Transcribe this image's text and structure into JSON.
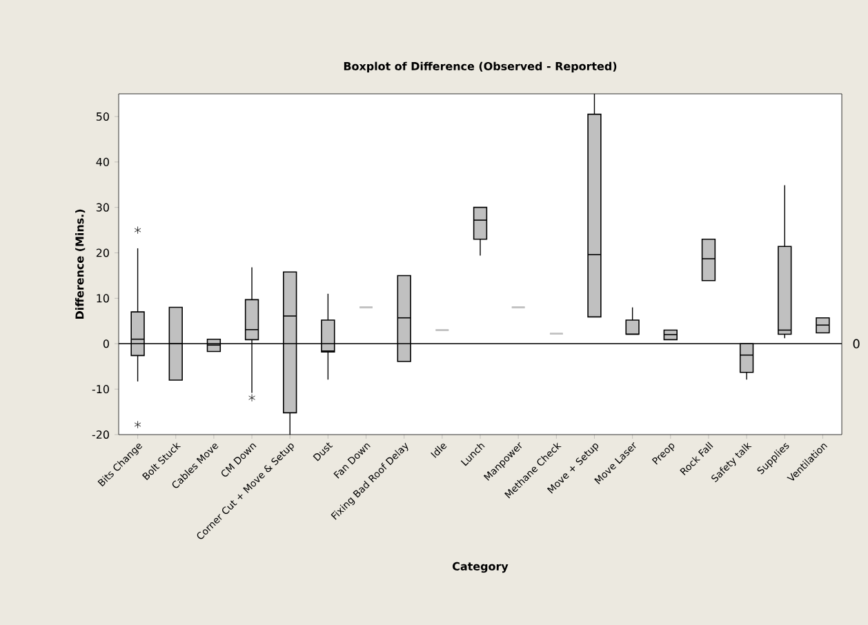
{
  "chart_data": {
    "type": "box",
    "title": "Boxplot of Difference (Observed - Reported)",
    "xlabel": "Category",
    "ylabel": "Difference (Mins.)",
    "categories": [
      "Bits Change",
      "Bolt Stuck",
      "Cables Move",
      "CM Down",
      "Corner Cut + Move & Setup",
      "Dust",
      "Fan Down",
      "Fixing Bad Roof Delay",
      "Idle",
      "Lunch",
      "Manpower",
      "Methane Check",
      "Move + Setup",
      "Move Laser",
      "Preop",
      "Rock Fall",
      "Safety talk",
      "Supplies",
      "Ventilation"
    ],
    "series": [
      {
        "color": "#c0c0c0",
        "boxes": [
          {
            "low": -8.3,
            "q1": -2.6,
            "median": 1,
            "q3": 7,
            "high": 21,
            "outliers": [
              25,
              -17.8
            ]
          },
          {
            "low": -8,
            "q1": -8,
            "median": 0,
            "q3": 8,
            "high": 8
          },
          {
            "low": -1.7,
            "q1": -1.7,
            "median": -0.3,
            "q3": 1,
            "high": 1
          },
          {
            "low": -10.8,
            "q1": 0.9,
            "median": 3.1,
            "q3": 9.7,
            "high": 16.8,
            "outliers": [
              -11.9
            ]
          },
          {
            "low": -20,
            "q1": -15.2,
            "median": 6.1,
            "q3": 15.8,
            "high": 15.8
          },
          {
            "low": -7.9,
            "q1": -1.8,
            "median": -1.6,
            "q3": 5.2,
            "high": 11
          },
          {
            "low": 8,
            "q1": 8,
            "median": 8,
            "q3": 8,
            "high": 8
          },
          {
            "low": -3.9,
            "q1": -3.9,
            "median": 5.7,
            "q3": 15,
            "high": 15
          },
          {
            "low": 3,
            "q1": 3,
            "median": 3,
            "q3": 3,
            "high": 3
          },
          {
            "low": 19.4,
            "q1": 23,
            "median": 27.2,
            "q3": 30,
            "high": 30
          },
          {
            "low": 8,
            "q1": 8,
            "median": 8,
            "q3": 8,
            "high": 8
          },
          {
            "low": 2.2,
            "q1": 2.2,
            "median": 2.2,
            "q3": 2.2,
            "high": 2.2
          },
          {
            "low": 5.9,
            "q1": 5.9,
            "median": 19.6,
            "q3": 50.5,
            "high": 55
          },
          {
            "low": 2.1,
            "q1": 2.1,
            "median": 2.1,
            "q3": 5.2,
            "high": 8
          },
          {
            "low": 0.9,
            "q1": 0.9,
            "median": 2,
            "q3": 3,
            "high": 3
          },
          {
            "low": 13.9,
            "q1": 13.9,
            "median": 18.7,
            "q3": 23,
            "high": 23
          },
          {
            "low": -7.9,
            "q1": -6.3,
            "median": -2.5,
            "q3": 0,
            "high": 0
          },
          {
            "low": 1.2,
            "q1": 2.1,
            "median": 3,
            "q3": 21.4,
            "high": 34.9
          },
          {
            "low": 2.4,
            "q1": 2.4,
            "median": 4.1,
            "q3": 5.7,
            "high": 5.7
          }
        ]
      }
    ],
    "ylim": [
      -20,
      55
    ],
    "yticks": [
      -20,
      -10,
      0,
      10,
      20,
      30,
      40,
      50
    ],
    "ref_lines": [
      {
        "axis": "y",
        "value": 0,
        "label": "0"
      }
    ]
  }
}
